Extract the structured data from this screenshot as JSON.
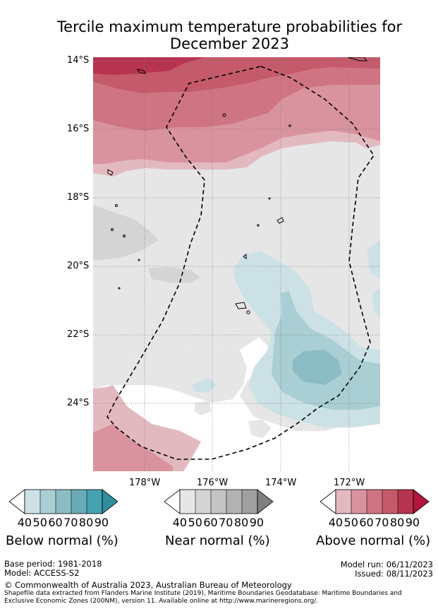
{
  "title_line1": "Tercile maximum temperature probabilities for",
  "title_line2": "December 2023",
  "map": {
    "latitude_labels": [
      "14°S",
      "16°S",
      "18°S",
      "20°S",
      "22°S",
      "24°S"
    ],
    "longitude_labels": [
      "178°W",
      "176°W",
      "174°W",
      "172°W"
    ]
  },
  "legends": {
    "below": {
      "caption": "Below normal (%)",
      "ticks": [
        "40",
        "50",
        "60",
        "70",
        "80",
        "90"
      ],
      "colors": [
        "#cce1e6",
        "#a9ced4",
        "#8bbcc4",
        "#6aacb6",
        "#44a2b0"
      ]
    },
    "near": {
      "caption": "Near normal (%)",
      "ticks": [
        "40",
        "50",
        "60",
        "70",
        "80",
        "90"
      ],
      "colors": [
        "#e6e6e6",
        "#d4d4d4",
        "#c4c4c4",
        "#b2b2b2",
        "#a0a0a0"
      ]
    },
    "above": {
      "caption": "Above normal (%)",
      "ticks": [
        "40",
        "50",
        "60",
        "70",
        "80",
        "90"
      ],
      "colors": [
        "#e3b9c0",
        "#d9939e",
        "#cf7483",
        "#c55a6b",
        "#b73450"
      ]
    }
  },
  "footer": {
    "base_period": "Base period: 1981-2018",
    "model": "Model: ACCESS-S2",
    "model_run": "Model run: 06/11/2023",
    "issued": "Issued: 08/11/2023",
    "copyright": "© Commonwealth of Australia 2023, Australian Bureau of Meteorology",
    "shapefile_line1": "Shapefile data extracted from Flanders Marine Institute (2019), Maritime Boundaries Geodatabase: Maritime Boundaries and",
    "shapefile_line2": "Exclusive Economic Zones (200NM), version 11. Available online at http://www.marineregions.org/."
  }
}
